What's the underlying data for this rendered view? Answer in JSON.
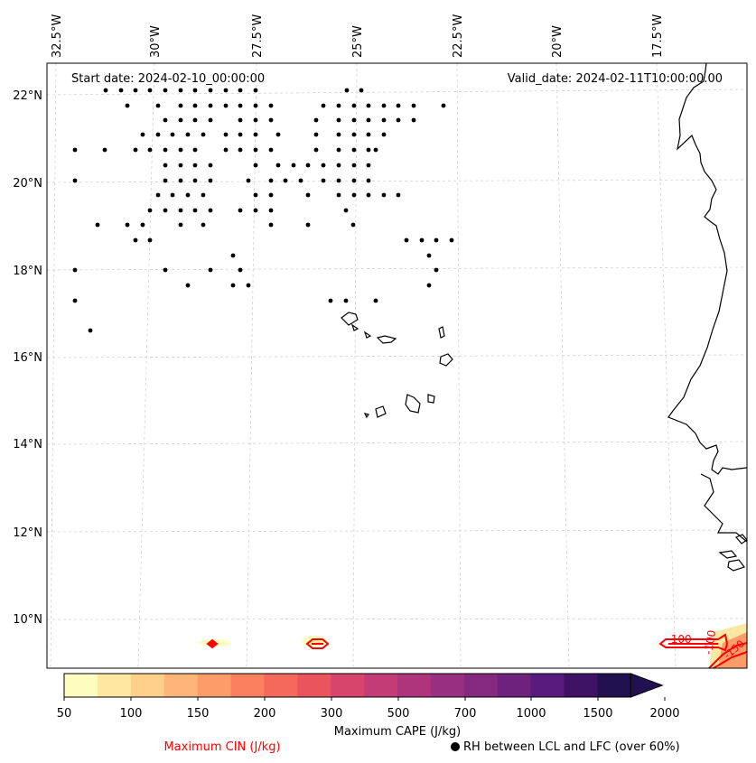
{
  "header": {
    "start_date": "Start date: 2024-02-10_00:00:00",
    "valid_date": "Valid_date: 2024-02-11T10:00:00.00"
  },
  "map": {
    "longitude_labels": [
      "32.5°W",
      "30°W",
      "27.5°W",
      "25°W",
      "22.5°W",
      "20°W",
      "17.5°W"
    ],
    "latitude_labels": [
      "22°N",
      "20°N",
      "18°N",
      "16°N",
      "14°N",
      "12°N",
      "10°N"
    ],
    "cin_contour_labels": [
      "-100",
      "-100",
      "-150"
    ]
  },
  "colorbar": {
    "label": "Maximum CAPE (J/kg)",
    "tick_labels": [
      "50",
      "100",
      "150",
      "200",
      "300",
      "500",
      "700",
      "1000",
      "1500",
      "2000"
    ],
    "colors": [
      "#fefdbf",
      "#fee7a1",
      "#fecf89",
      "#feb577",
      "#fd9c69",
      "#fb8060",
      "#f4695c",
      "#e9545d",
      "#d8456c",
      "#c43c75",
      "#ae347b",
      "#99307f",
      "#84297e",
      "#6e227e",
      "#581b7e",
      "#3e1265",
      "#221150"
    ],
    "extend": "max"
  },
  "legend": {
    "cin_label": "Maximum CIN (J/kg)",
    "cin_color": "#ff0000",
    "rh_label": "RH between LCL and LFC (over 60%)",
    "rh_marker": "black-dot"
  }
}
